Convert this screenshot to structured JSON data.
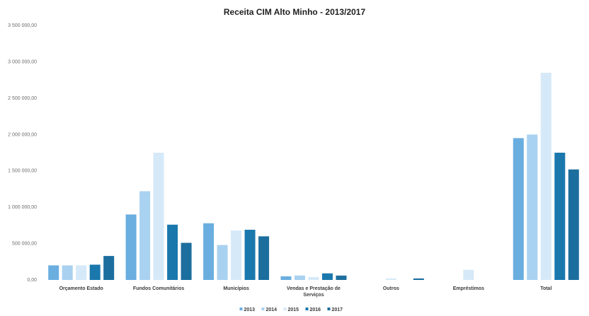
{
  "chart_data": {
    "type": "bar",
    "title": "Receita CIM Alto Minho - 2013/2017",
    "xlabel": "",
    "ylabel": "",
    "ylim": [
      0,
      3500000
    ],
    "y_ticks": [
      0,
      500000,
      1000000,
      1500000,
      2000000,
      2500000,
      3000000,
      3500000
    ],
    "y_tick_labels": [
      "0,00",
      "500 000,00",
      "1 000 000,00",
      "1 500 000,00",
      "2 000 000,00",
      "2 500 000,00",
      "3 000 000,00",
      "3 500 000,00"
    ],
    "categories": [
      "Orçamento Estado",
      "Fundos Comunitários",
      "Municípios",
      "Vendas e Prestação de Serviços",
      "Outros",
      "Empréstimos",
      "Total"
    ],
    "series": [
      {
        "name": "2013",
        "color": "#6aaee0",
        "values": [
          200000,
          900000,
          780000,
          50000,
          0,
          0,
          1950000
        ]
      },
      {
        "name": "2014",
        "color": "#a9d1f0",
        "values": [
          200000,
          1220000,
          480000,
          60000,
          0,
          0,
          2000000
        ]
      },
      {
        "name": "2015",
        "color": "#d6e9f8",
        "values": [
          200000,
          1750000,
          680000,
          40000,
          20000,
          140000,
          2850000
        ]
      },
      {
        "name": "2016",
        "color": "#1a78ad",
        "values": [
          210000,
          760000,
          690000,
          90000,
          0,
          0,
          1750000
        ]
      },
      {
        "name": "2017",
        "color": "#1c6e9e",
        "values": [
          330000,
          510000,
          600000,
          60000,
          20000,
          0,
          1520000
        ]
      }
    ],
    "legend_position": "bottom",
    "grid": false
  }
}
